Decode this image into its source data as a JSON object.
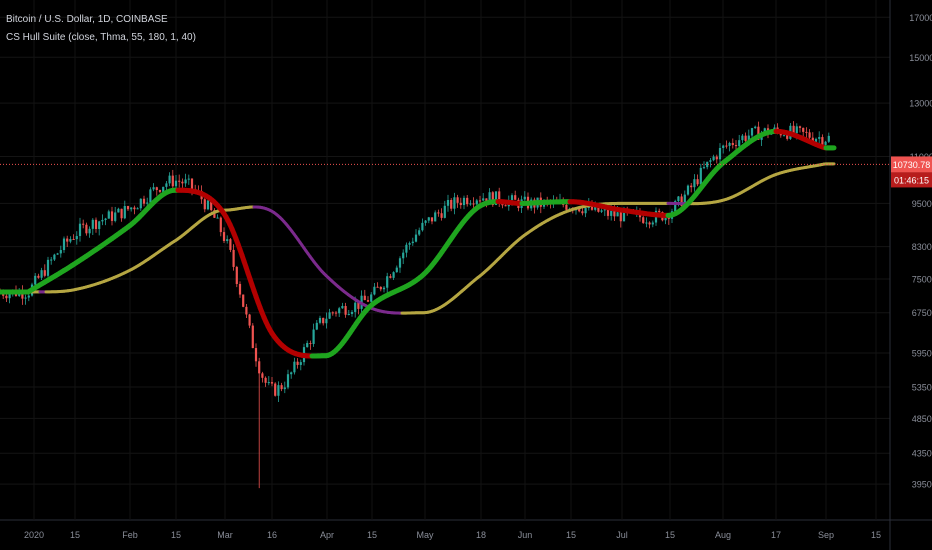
{
  "legend": {
    "title": "Bitcoin / U.S. Dollar, 1D, COINBASE",
    "indicator": "CS Hull Suite (close, Thma, 55, 180, 1, 40)"
  },
  "price_axis": {
    "labels": [
      "17000.00",
      "15000.00",
      "13000.00",
      "11000.00",
      "9500.00",
      "8300.00",
      "7500.00",
      "6750.00",
      "5950.00",
      "5350.00",
      "4850.00",
      "4350.00",
      "3950.00"
    ],
    "last_price": "10730.78",
    "countdown": "01:46:15"
  },
  "time_axis": {
    "labels": [
      "2020",
      "15",
      "Feb",
      "15",
      "Mar",
      "16",
      "Apr",
      "15",
      "May",
      "18",
      "Jun",
      "15",
      "Jul",
      "15",
      "Aug",
      "17",
      "Sep",
      "15"
    ]
  },
  "colors": {
    "background": "#000000",
    "candle_up": "#26a69a",
    "candle_down": "#ef5350",
    "hull_fast_up": "#1fa51f",
    "hull_fast_down": "#b30000",
    "hull_slow_up": "#b5a642",
    "hull_slow_down": "#7b2a8c",
    "price_line": "#ef5350"
  },
  "chart_data": {
    "type": "line",
    "title": "Bitcoin / U.S. Dollar, 1D, COINBASE",
    "x": [
      "2020-01-01",
      "2020-01-15",
      "2020-02-01",
      "2020-02-15",
      "2020-03-01",
      "2020-03-16",
      "2020-04-01",
      "2020-04-15",
      "2020-05-01",
      "2020-05-18",
      "2020-06-01",
      "2020-06-15",
      "2020-07-01",
      "2020-07-15",
      "2020-08-01",
      "2020-08-17",
      "2020-09-01"
    ],
    "y_scale": "log",
    "ylim": [
      3700,
      17500
    ],
    "series": [
      {
        "name": "close",
        "values": [
          7200,
          8600,
          9350,
          10200,
          8550,
          5300,
          6650,
          7100,
          8850,
          9700,
          9500,
          9450,
          9150,
          9250,
          11300,
          11900,
          11650
        ]
      },
      {
        "name": "",
        "values": [
          7200,
          7850,
          8850,
          9900,
          9200,
          6300,
          5900,
          6900,
          7600,
          9400,
          9500,
          9550,
          9300,
          9150,
          10800,
          11900,
          11300
        ]
      },
      {
        "name": "",
        "values": [
          7200,
          7250,
          7700,
          8450,
          9300,
          9250,
          7600,
          6850,
          6750,
          7550,
          8600,
          9300,
          9500,
          9500,
          9600,
          10400,
          10750
        ]
      }
    ],
    "last_price": 10730.78
  }
}
